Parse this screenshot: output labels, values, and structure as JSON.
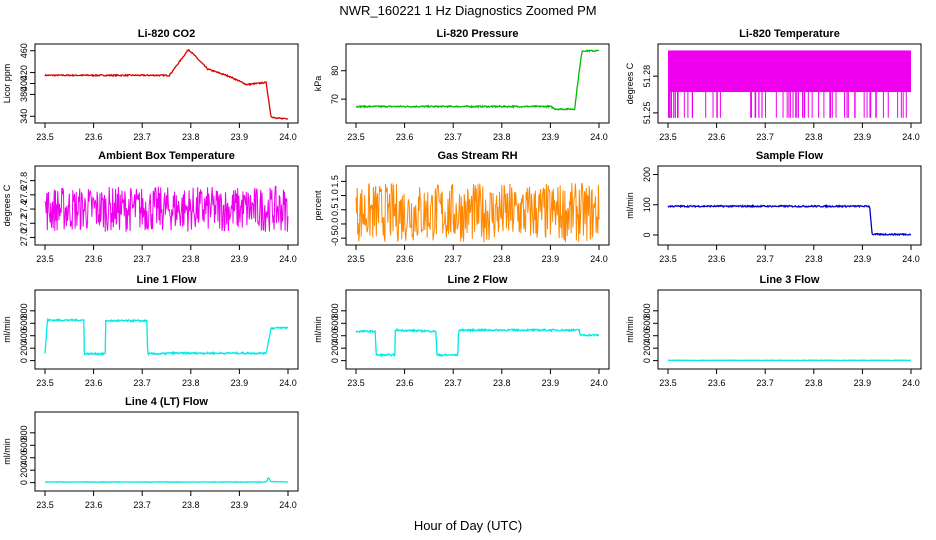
{
  "title": "NWR_160221  1 Hz Diagnostics Zoomed PM",
  "x_caption": "Hour of Day (UTC)",
  "chart_data": [
    {
      "type": "line",
      "title": "Li-820 CO2",
      "ylabel": "Licor ppm",
      "color": "#dd0000",
      "xlim": [
        23.5,
        24.0
      ],
      "ylim": [
        335,
        465
      ],
      "xticks": [
        23.5,
        23.6,
        23.7,
        23.8,
        23.9,
        24.0
      ],
      "yticks": [
        340,
        380,
        400,
        420,
        460
      ],
      "series": [
        {
          "name": "CO2",
          "x": [
            23.5,
            23.755,
            23.756,
            23.795,
            23.796,
            23.835,
            23.836,
            23.876,
            23.877,
            23.915,
            23.916,
            23.955,
            23.965,
            23.975,
            24.0
          ],
          "y": [
            415,
            415,
            415,
            462,
            462,
            426,
            426,
            414,
            414,
            398,
            398,
            402,
            340,
            336,
            336
          ]
        }
      ]
    },
    {
      "type": "line",
      "title": "Li-820 Pressure",
      "ylabel": "kPa",
      "color": "#00bb00",
      "xlim": [
        23.5,
        24.0
      ],
      "ylim": [
        63,
        88
      ],
      "xticks": [
        23.5,
        23.6,
        23.7,
        23.8,
        23.9,
        24.0
      ],
      "yticks": [
        70,
        80
      ],
      "series": [
        {
          "name": "Pressure",
          "x": [
            23.5,
            23.9,
            23.91,
            23.95,
            23.955,
            23.965,
            23.975,
            24.0
          ],
          "y": [
            67.4,
            67.4,
            66.5,
            66.5,
            74,
            87,
            87,
            87
          ]
        }
      ]
    },
    {
      "type": "line",
      "title": "Li-820 Temperature",
      "ylabel": "degrees C",
      "color": "#ee00ee",
      "xlim": [
        23.5,
        24.0
      ],
      "ylim": [
        51.245,
        51.303
      ],
      "xticks": [
        23.5,
        23.6,
        23.7,
        23.8,
        23.9,
        24.0
      ],
      "yticks": [
        51.25,
        51.28
      ],
      "series": [
        {
          "name": "Temperature",
          "x": [
            23.5,
            24.0
          ],
          "y": [
            51.28,
            51.28
          ]
        }
      ]
    },
    {
      "type": "line",
      "title": "Ambient Box Temperature",
      "ylabel": "degrees C",
      "color": "#ee00ee",
      "xlim": [
        23.5,
        24.0
      ],
      "ylim": [
        26.95,
        27.95
      ],
      "xticks": [
        23.5,
        23.6,
        23.7,
        23.8,
        23.9,
        24.0
      ],
      "yticks": [
        27.0,
        27.2,
        27.4,
        27.6,
        27.8
      ],
      "series": [
        {
          "name": "Ambient Box",
          "x": [
            23.5,
            24.0
          ],
          "y": [
            27.4,
            27.4
          ]
        }
      ]
    },
    {
      "type": "line",
      "title": "Gas Stream RH",
      "ylabel": "percent",
      "color": "#ff8800",
      "xlim": [
        23.5,
        24.0
      ],
      "ylim": [
        -0.6,
        1.9
      ],
      "xticks": [
        23.5,
        23.6,
        23.7,
        23.8,
        23.9,
        24.0
      ],
      "yticks": [
        -0.5,
        0.0,
        0.5,
        1.0,
        1.5
      ],
      "series": [
        {
          "name": "RH",
          "x": [
            23.5,
            24.0
          ],
          "y": [
            0.4,
            0.4
          ]
        }
      ]
    },
    {
      "type": "line",
      "title": "Sample Flow",
      "ylabel": "ml/min",
      "color": "#0000cc",
      "xlim": [
        23.5,
        24.0
      ],
      "ylim": [
        -20,
        215
      ],
      "xticks": [
        23.5,
        23.6,
        23.7,
        23.8,
        23.9,
        24.0
      ],
      "yticks": [
        0,
        100,
        200
      ],
      "series": [
        {
          "name": "Sample Flow",
          "x": [
            23.5,
            23.915,
            23.92,
            24.0
          ],
          "y": [
            95,
            95,
            2,
            2
          ]
        }
      ]
    },
    {
      "type": "line",
      "title": "Line 1 Flow",
      "ylabel": "ml/min",
      "color": "#00e8e8",
      "xlim": [
        23.5,
        24.0
      ],
      "ylim": [
        -70,
        1070
      ],
      "xticks": [
        23.5,
        23.6,
        23.7,
        23.8,
        23.9,
        24.0
      ],
      "yticks": [
        0,
        200,
        400,
        600,
        800
      ],
      "series": [
        {
          "name": "Line 1",
          "x": [
            23.5,
            23.505,
            23.58,
            23.581,
            23.624,
            23.625,
            23.71,
            23.711,
            23.75,
            23.751,
            23.955,
            23.965,
            24.0
          ],
          "y": [
            110,
            650,
            650,
            110,
            110,
            640,
            640,
            110,
            110,
            120,
            120,
            520,
            530
          ]
        }
      ]
    },
    {
      "type": "line",
      "title": "Line 2 Flow",
      "ylabel": "ml/min",
      "color": "#00e8e8",
      "xlim": [
        23.5,
        24.0
      ],
      "ylim": [
        -70,
        1070
      ],
      "xticks": [
        23.5,
        23.6,
        23.7,
        23.8,
        23.9,
        24.0
      ],
      "yticks": [
        0,
        200,
        400,
        600,
        800
      ],
      "series": [
        {
          "name": "Line 2",
          "x": [
            23.5,
            23.54,
            23.541,
            23.58,
            23.581,
            23.665,
            23.666,
            23.71,
            23.711,
            23.96,
            23.961,
            24.0
          ],
          "y": [
            470,
            470,
            90,
            90,
            490,
            470,
            90,
            90,
            490,
            490,
            410,
            410
          ]
        }
      ]
    },
    {
      "type": "line",
      "title": "Line 3 Flow",
      "ylabel": "ml/min",
      "color": "#00e8e8",
      "xlim": [
        23.5,
        24.0
      ],
      "ylim": [
        -70,
        1070
      ],
      "xticks": [
        23.5,
        23.6,
        23.7,
        23.8,
        23.9,
        24.0
      ],
      "yticks": [
        0,
        200,
        400,
        600,
        800
      ],
      "series": [
        {
          "name": "Line 3",
          "x": [
            23.5,
            24.0
          ],
          "y": [
            5,
            5
          ]
        }
      ]
    },
    {
      "type": "line",
      "title": "Line 4 (LT) Flow",
      "ylabel": "ml/min",
      "color": "#00e8e8",
      "xlim": [
        23.5,
        24.0
      ],
      "ylim": [
        -70,
        1070
      ],
      "xticks": [
        23.5,
        23.6,
        23.7,
        23.8,
        23.9,
        24.0
      ],
      "yticks": [
        0,
        200,
        400,
        600,
        800
      ],
      "series": [
        {
          "name": "Line 4",
          "x": [
            23.5,
            23.955,
            23.96,
            23.965,
            24.0
          ],
          "y": [
            10,
            10,
            80,
            15,
            12
          ]
        }
      ]
    }
  ]
}
